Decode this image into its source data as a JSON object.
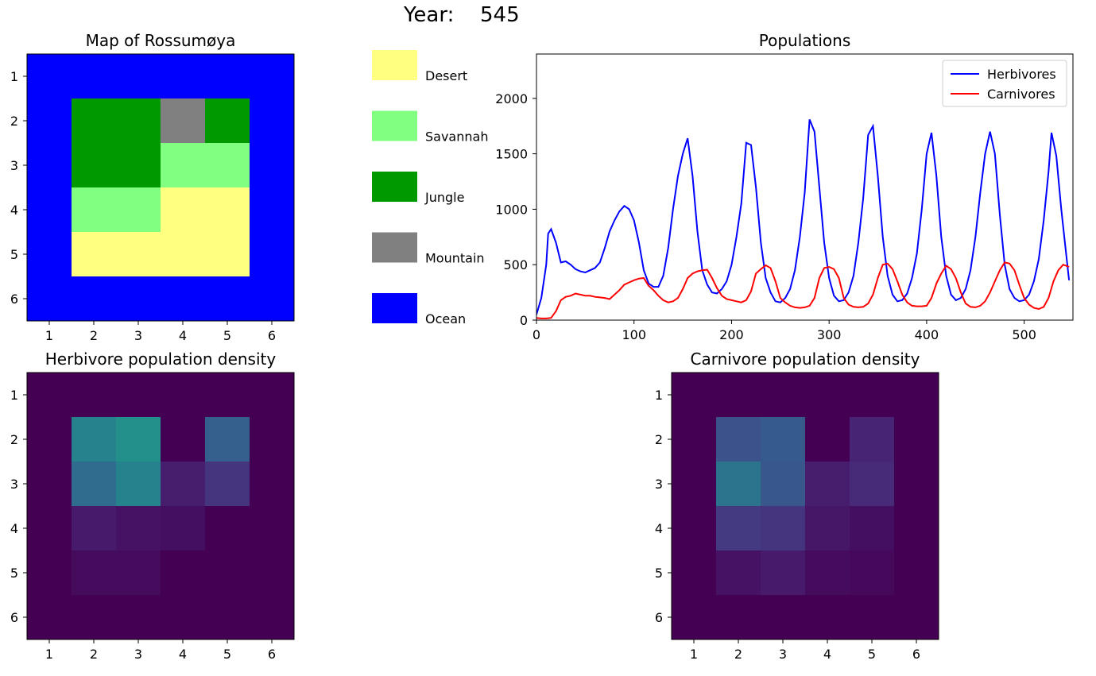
{
  "year_label": "Year:",
  "year_value": "545",
  "chart_data": [
    {
      "type": "heatmap",
      "title": "Map of Rossumøya",
      "x_ticks": [
        "1",
        "2",
        "3",
        "4",
        "5",
        "6"
      ],
      "y_ticks": [
        "1",
        "2",
        "3",
        "4",
        "5",
        "6"
      ],
      "grid": [
        [
          "Ocean",
          "Ocean",
          "Ocean",
          "Ocean",
          "Ocean",
          "Ocean"
        ],
        [
          "Ocean",
          "Jungle",
          "Jungle",
          "Mountain",
          "Jungle",
          "Ocean"
        ],
        [
          "Ocean",
          "Jungle",
          "Jungle",
          "Savannah",
          "Savannah",
          "Ocean"
        ],
        [
          "Ocean",
          "Savannah",
          "Savannah",
          "Desert",
          "Desert",
          "Ocean"
        ],
        [
          "Ocean",
          "Desert",
          "Desert",
          "Desert",
          "Desert",
          "Ocean"
        ],
        [
          "Ocean",
          "Ocean",
          "Ocean",
          "Ocean",
          "Ocean",
          "Ocean"
        ]
      ],
      "colors": {
        "Desert": "#ffff80",
        "Savannah": "#80ff80",
        "Jungle": "#009900",
        "Mountain": "#808080",
        "Ocean": "#0000ff"
      },
      "legend": [
        {
          "label": "Desert",
          "color": "#ffff80"
        },
        {
          "label": "Savannah",
          "color": "#80ff80"
        },
        {
          "label": "Jungle",
          "color": "#009900"
        },
        {
          "label": "Mountain",
          "color": "#808080"
        },
        {
          "label": "Ocean",
          "color": "#0000ff"
        }
      ]
    },
    {
      "type": "line",
      "title": "Populations",
      "xlim": [
        0,
        550
      ],
      "ylim": [
        0,
        2400
      ],
      "x_ticks": [
        0,
        100,
        200,
        300,
        400,
        500
      ],
      "y_ticks": [
        0,
        500,
        1000,
        1500,
        2000
      ],
      "legend_position": "top-right",
      "series": [
        {
          "name": "Herbivores",
          "color": "#0000ff",
          "points": [
            [
              0,
              50
            ],
            [
              5,
              200
            ],
            [
              10,
              500
            ],
            [
              12,
              780
            ],
            [
              15,
              820
            ],
            [
              20,
              700
            ],
            [
              25,
              520
            ],
            [
              30,
              530
            ],
            [
              35,
              500
            ],
            [
              40,
              460
            ],
            [
              45,
              440
            ],
            [
              50,
              430
            ],
            [
              55,
              450
            ],
            [
              60,
              470
            ],
            [
              65,
              520
            ],
            [
              70,
              650
            ],
            [
              75,
              800
            ],
            [
              80,
              900
            ],
            [
              85,
              980
            ],
            [
              90,
              1030
            ],
            [
              95,
              1000
            ],
            [
              100,
              900
            ],
            [
              105,
              700
            ],
            [
              110,
              450
            ],
            [
              115,
              330
            ],
            [
              120,
              300
            ],
            [
              125,
              300
            ],
            [
              130,
              400
            ],
            [
              135,
              650
            ],
            [
              140,
              1000
            ],
            [
              145,
              1300
            ],
            [
              150,
              1500
            ],
            [
              155,
              1640
            ],
            [
              160,
              1300
            ],
            [
              165,
              800
            ],
            [
              170,
              450
            ],
            [
              175,
              320
            ],
            [
              180,
              250
            ],
            [
              185,
              240
            ],
            [
              190,
              280
            ],
            [
              195,
              350
            ],
            [
              200,
              500
            ],
            [
              205,
              750
            ],
            [
              210,
              1050
            ],
            [
              215,
              1600
            ],
            [
              220,
              1580
            ],
            [
              225,
              1200
            ],
            [
              230,
              700
            ],
            [
              235,
              380
            ],
            [
              240,
              250
            ],
            [
              245,
              170
            ],
            [
              250,
              160
            ],
            [
              255,
              200
            ],
            [
              260,
              280
            ],
            [
              265,
              450
            ],
            [
              270,
              750
            ],
            [
              275,
              1150
            ],
            [
              280,
              1810
            ],
            [
              285,
              1700
            ],
            [
              290,
              1200
            ],
            [
              295,
              700
            ],
            [
              300,
              380
            ],
            [
              305,
              220
            ],
            [
              310,
              170
            ],
            [
              315,
              180
            ],
            [
              320,
              250
            ],
            [
              325,
              400
            ],
            [
              330,
              700
            ],
            [
              335,
              1100
            ],
            [
              340,
              1670
            ],
            [
              345,
              1750
            ],
            [
              350,
              1300
            ],
            [
              355,
              750
            ],
            [
              360,
              400
            ],
            [
              365,
              230
            ],
            [
              370,
              170
            ],
            [
              375,
              180
            ],
            [
              380,
              240
            ],
            [
              385,
              380
            ],
            [
              390,
              600
            ],
            [
              395,
              1000
            ],
            [
              400,
              1500
            ],
            [
              405,
              1690
            ],
            [
              410,
              1300
            ],
            [
              415,
              750
            ],
            [
              420,
              400
            ],
            [
              425,
              230
            ],
            [
              430,
              180
            ],
            [
              435,
              200
            ],
            [
              440,
              280
            ],
            [
              445,
              450
            ],
            [
              450,
              750
            ],
            [
              455,
              1150
            ],
            [
              460,
              1500
            ],
            [
              465,
              1700
            ],
            [
              470,
              1500
            ],
            [
              475,
              950
            ],
            [
              480,
              500
            ],
            [
              485,
              280
            ],
            [
              490,
              200
            ],
            [
              495,
              170
            ],
            [
              500,
              180
            ],
            [
              505,
              230
            ],
            [
              510,
              350
            ],
            [
              515,
              550
            ],
            [
              520,
              900
            ],
            [
              525,
              1340
            ],
            [
              528,
              1690
            ],
            [
              533,
              1480
            ],
            [
              538,
              1000
            ],
            [
              543,
              600
            ],
            [
              546,
              360
            ]
          ]
        },
        {
          "name": "Carnivores",
          "color": "#ff0000",
          "points": [
            [
              0,
              20
            ],
            [
              5,
              15
            ],
            [
              10,
              15
            ],
            [
              15,
              20
            ],
            [
              20,
              80
            ],
            [
              25,
              180
            ],
            [
              30,
              210
            ],
            [
              35,
              220
            ],
            [
              40,
              240
            ],
            [
              45,
              230
            ],
            [
              50,
              220
            ],
            [
              55,
              220
            ],
            [
              60,
              210
            ],
            [
              65,
              205
            ],
            [
              70,
              200
            ],
            [
              75,
              190
            ],
            [
              80,
              230
            ],
            [
              85,
              270
            ],
            [
              90,
              320
            ],
            [
              95,
              340
            ],
            [
              100,
              360
            ],
            [
              105,
              375
            ],
            [
              110,
              380
            ],
            [
              115,
              310
            ],
            [
              120,
              270
            ],
            [
              125,
              220
            ],
            [
              130,
              180
            ],
            [
              135,
              160
            ],
            [
              140,
              170
            ],
            [
              145,
              200
            ],
            [
              150,
              280
            ],
            [
              155,
              380
            ],
            [
              160,
              420
            ],
            [
              165,
              440
            ],
            [
              170,
              450
            ],
            [
              175,
              455
            ],
            [
              180,
              380
            ],
            [
              185,
              290
            ],
            [
              190,
              220
            ],
            [
              195,
              190
            ],
            [
              200,
              180
            ],
            [
              205,
              170
            ],
            [
              210,
              160
            ],
            [
              215,
              180
            ],
            [
              220,
              260
            ],
            [
              225,
              420
            ],
            [
              230,
              460
            ],
            [
              235,
              495
            ],
            [
              240,
              470
            ],
            [
              245,
              350
            ],
            [
              250,
              200
            ],
            [
              255,
              160
            ],
            [
              260,
              130
            ],
            [
              265,
              115
            ],
            [
              270,
              110
            ],
            [
              275,
              115
            ],
            [
              280,
              130
            ],
            [
              285,
              200
            ],
            [
              290,
              380
            ],
            [
              295,
              470
            ],
            [
              300,
              480
            ],
            [
              305,
              460
            ],
            [
              310,
              380
            ],
            [
              315,
              200
            ],
            [
              320,
              140
            ],
            [
              325,
              120
            ],
            [
              330,
              115
            ],
            [
              335,
              120
            ],
            [
              340,
              150
            ],
            [
              345,
              230
            ],
            [
              350,
              380
            ],
            [
              355,
              500
            ],
            [
              360,
              510
            ],
            [
              365,
              460
            ],
            [
              370,
              350
            ],
            [
              375,
              230
            ],
            [
              380,
              160
            ],
            [
              385,
              130
            ],
            [
              390,
              125
            ],
            [
              395,
              125
            ],
            [
              400,
              130
            ],
            [
              405,
              200
            ],
            [
              410,
              330
            ],
            [
              415,
              420
            ],
            [
              420,
              490
            ],
            [
              425,
              460
            ],
            [
              430,
              380
            ],
            [
              435,
              250
            ],
            [
              440,
              150
            ],
            [
              445,
              120
            ],
            [
              450,
              115
            ],
            [
              455,
              130
            ],
            [
              460,
              170
            ],
            [
              465,
              250
            ],
            [
              470,
              350
            ],
            [
              475,
              450
            ],
            [
              480,
              520
            ],
            [
              485,
              510
            ],
            [
              490,
              450
            ],
            [
              495,
              320
            ],
            [
              500,
              200
            ],
            [
              505,
              140
            ],
            [
              510,
              110
            ],
            [
              515,
              100
            ],
            [
              520,
              120
            ],
            [
              525,
              200
            ],
            [
              530,
              350
            ],
            [
              535,
              450
            ],
            [
              540,
              500
            ],
            [
              546,
              480
            ]
          ]
        }
      ]
    },
    {
      "type": "heatmap",
      "title": "Herbivore population density",
      "x_ticks": [
        "1",
        "2",
        "3",
        "4",
        "5",
        "6"
      ],
      "y_ticks": [
        "1",
        "2",
        "3",
        "4",
        "5",
        "6"
      ],
      "colormap": "viridis",
      "values": [
        [
          0,
          0,
          0,
          0,
          0,
          0
        ],
        [
          0,
          0.45,
          0.5,
          0,
          0.3,
          0
        ],
        [
          0,
          0.35,
          0.45,
          0.08,
          0.15,
          0
        ],
        [
          0,
          0.07,
          0.05,
          0.04,
          0,
          0
        ],
        [
          0,
          0.03,
          0.03,
          0,
          0,
          0
        ],
        [
          0,
          0,
          0,
          0,
          0,
          0
        ]
      ]
    },
    {
      "type": "heatmap",
      "title": "Carnivore population density",
      "x_ticks": [
        "1",
        "2",
        "3",
        "4",
        "5",
        "6"
      ],
      "y_ticks": [
        "1",
        "2",
        "3",
        "4",
        "5",
        "6"
      ],
      "colormap": "viridis",
      "values": [
        [
          0,
          0,
          0,
          0,
          0,
          0
        ],
        [
          0,
          0.25,
          0.28,
          0,
          0.1,
          0
        ],
        [
          0,
          0.38,
          0.27,
          0.08,
          0.12,
          0
        ],
        [
          0,
          0.17,
          0.15,
          0.06,
          0.04,
          0
        ],
        [
          0,
          0.05,
          0.07,
          0.03,
          0.02,
          0
        ],
        [
          0,
          0,
          0,
          0,
          0,
          0
        ]
      ]
    }
  ]
}
